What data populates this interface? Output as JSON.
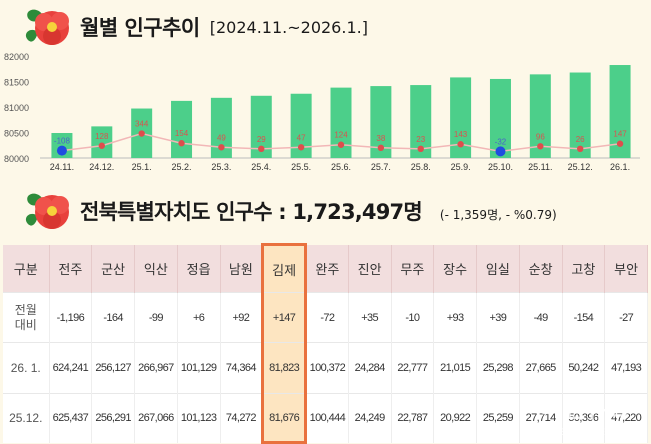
{
  "header1": {
    "title": "월별 인구추이",
    "range": "[2024.11.~2026.1.]"
  },
  "header2": {
    "title": "전북특별자치도 인구수 : 1,723,497명",
    "change": "(- 1,359명, - %0.79)"
  },
  "chart_data": {
    "type": "bar",
    "categories": [
      "24.11.",
      "24.12.",
      "25.1.",
      "25.2.",
      "25.3.",
      "25.4.",
      "25.5.",
      "25.6.",
      "25.7.",
      "25.8.",
      "25.9.",
      "25.10.",
      "25.11.",
      "25.12.",
      "26.1."
    ],
    "values": [
      80490,
      80620,
      80970,
      81120,
      81180,
      81220,
      81260,
      81380,
      81410,
      81430,
      81580,
      81550,
      81640,
      81676,
      81823
    ],
    "line_values": [
      80145,
      80240,
      80480,
      80290,
      80210,
      80180,
      80210,
      80260,
      80200,
      80180,
      80270,
      80130,
      80230,
      80180,
      80280
    ],
    "line_labels": [
      "-108",
      "128",
      "344",
      "154",
      "49",
      "29",
      "47",
      "124",
      "38",
      "23",
      "143",
      "-32",
      "96",
      "26",
      "147"
    ],
    "negative_indices": [
      0,
      11
    ],
    "yticks": [
      "82000",
      "81500",
      "81000",
      "80500",
      "80000"
    ],
    "ylim": [
      80000,
      82000
    ],
    "colors": {
      "bar": "#4ccf8a",
      "line": "#f2b7b7",
      "marker": "#de4d4d",
      "negative_marker": "#1f4de0",
      "label": "#d9534f",
      "negative_label": "#4a63c9"
    }
  },
  "table": {
    "columns": [
      "구분",
      "전주",
      "군산",
      "익산",
      "정읍",
      "남원",
      "김제",
      "완주",
      "진안",
      "무주",
      "장수",
      "임실",
      "순창",
      "고창",
      "부안"
    ],
    "rows": [
      {
        "label": "전월\n대비",
        "values": [
          "-1,196",
          "-164",
          "-99",
          "+6",
          "+92",
          "+147",
          "-72",
          "+35",
          "-10",
          "+93",
          "+39",
          "-49",
          "-154",
          "-27"
        ]
      },
      {
        "label": "26. 1.",
        "values": [
          "624,241",
          "256,127",
          "266,967",
          "101,129",
          "74,364",
          "81,823",
          "100,372",
          "24,284",
          "22,777",
          "21,015",
          "25,298",
          "27,665",
          "50,242",
          "47,193"
        ]
      },
      {
        "label": "25.12.",
        "values": [
          "625,437",
          "256,291",
          "267,066",
          "101,123",
          "74,272",
          "81,676",
          "100,444",
          "24,249",
          "22,787",
          "20,922",
          "25,259",
          "27,714",
          "50,396",
          "47,220"
        ]
      }
    ],
    "highlight_column": "김제"
  },
  "watermark": {
    "name": "더펜뉴스",
    "sub": "THE PEN NEWS"
  }
}
